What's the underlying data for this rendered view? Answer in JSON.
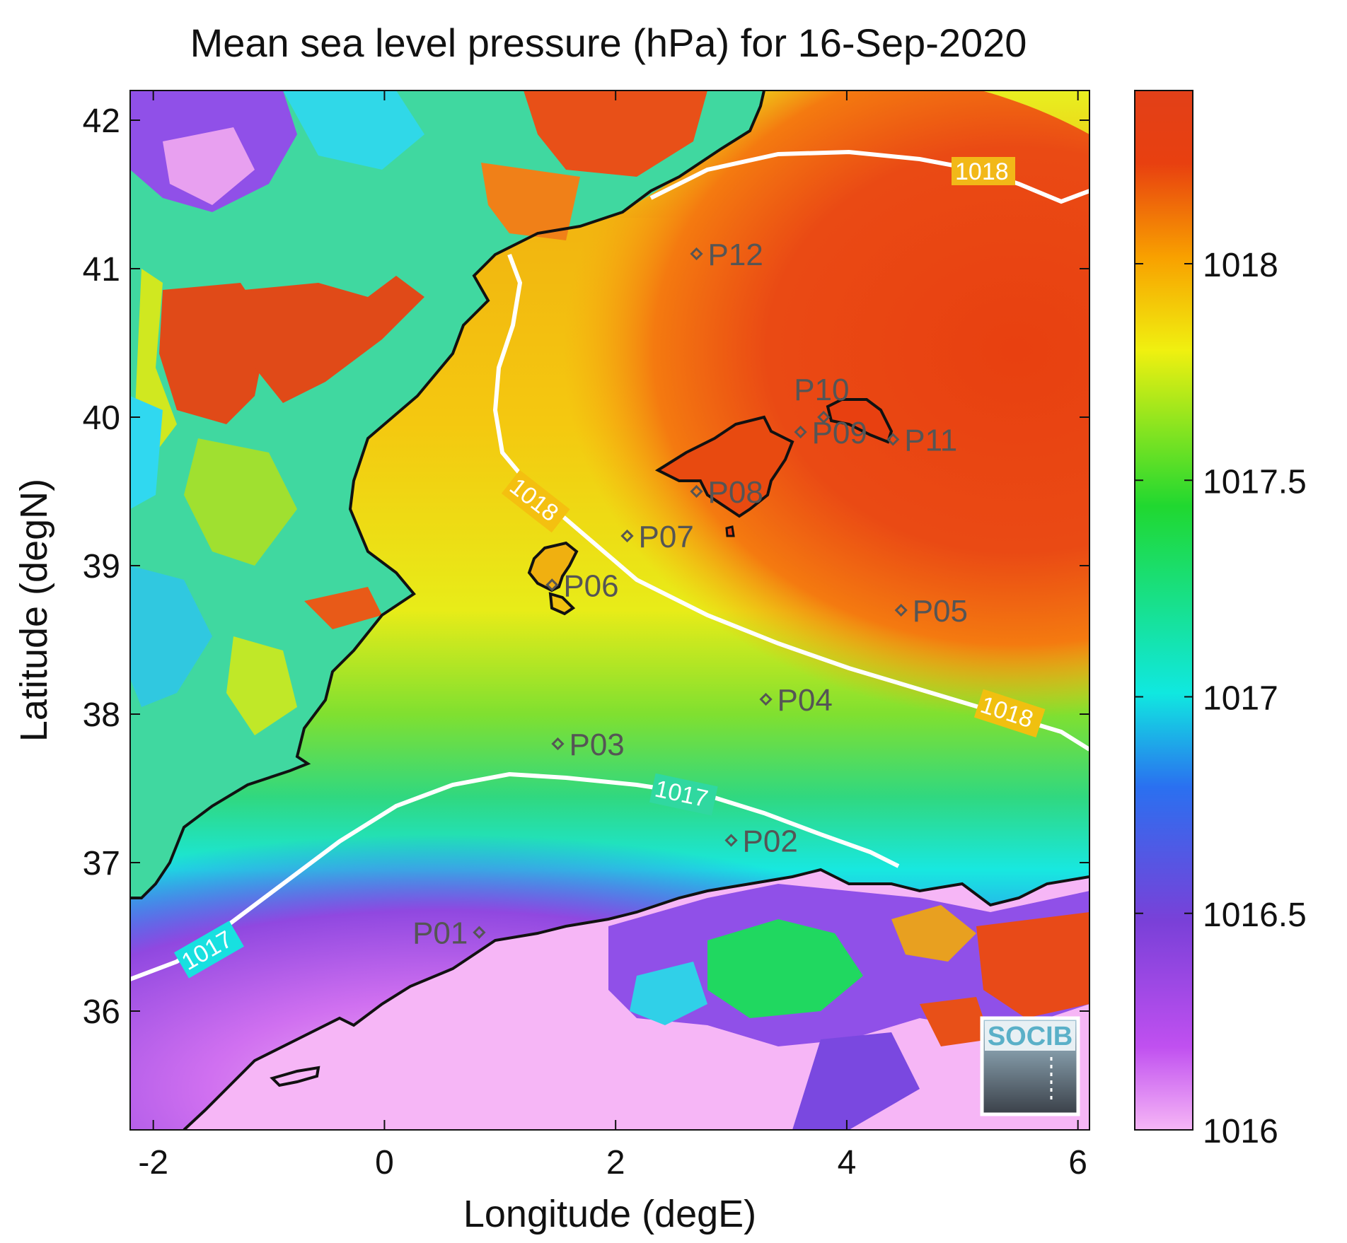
{
  "title": "Mean sea level pressure (hPa) for 16-Sep-2020",
  "axes": {
    "xlabel": "Longitude (degE)",
    "ylabel": "Latitude (degN)",
    "xlim": [
      -2.2,
      6.1
    ],
    "ylim": [
      35.2,
      42.2
    ],
    "xticks": [
      -2,
      0,
      2,
      4,
      6
    ],
    "yticks": [
      36,
      37,
      38,
      39,
      40,
      41,
      42
    ]
  },
  "colorbar": {
    "range": [
      1016,
      1018.4
    ],
    "ticks": [
      "1016",
      "1016.5",
      "1017",
      "1017.5",
      "1018"
    ],
    "colors": [
      "#f6b6f6",
      "#c050f0",
      "#7a40d8",
      "#2a70f0",
      "#10e8e0",
      "#20d830",
      "#f0f010",
      "#f8a000",
      "#e84010"
    ]
  },
  "contour_labels": [
    "1018",
    "1018",
    "1018",
    "1017",
    "1017"
  ],
  "points": [
    {
      "name": "P01",
      "lon": 0.82,
      "lat": 36.53
    },
    {
      "name": "P02",
      "lon": 3.0,
      "lat": 37.15
    },
    {
      "name": "P03",
      "lon": 1.5,
      "lat": 37.8
    },
    {
      "name": "P04",
      "lon": 3.3,
      "lat": 38.1
    },
    {
      "name": "P05",
      "lon": 4.47,
      "lat": 38.7
    },
    {
      "name": "P06",
      "lon": 1.45,
      "lat": 38.87
    },
    {
      "name": "P07",
      "lon": 2.1,
      "lat": 39.2
    },
    {
      "name": "P08",
      "lon": 2.7,
      "lat": 39.5
    },
    {
      "name": "P09",
      "lon": 3.6,
      "lat": 39.9
    },
    {
      "name": "P10",
      "lon": 3.8,
      "lat": 40.0
    },
    {
      "name": "P11",
      "lon": 4.4,
      "lat": 39.85
    },
    {
      "name": "P12",
      "lon": 2.7,
      "lat": 41.1
    }
  ],
  "logo": {
    "text": "SOCIB"
  },
  "icons": {
    "point": "diamond-marker-icon"
  }
}
